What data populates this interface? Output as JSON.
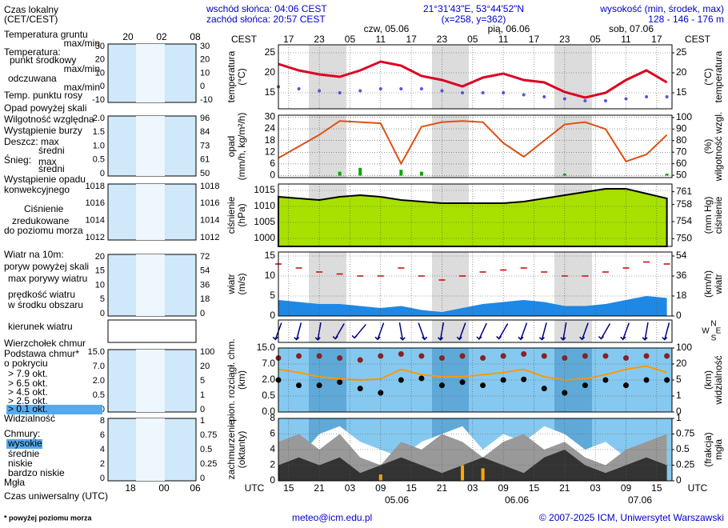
{
  "header": {
    "sunrise": "wschód słońca: 04:06 CEST",
    "sunset": "zachód słońca: 20:57 CEST",
    "coords": "21°31'43\"E, 53°44'52\"N",
    "gridpoint": "(x=258, y=362)",
    "elevation_title": "wysokość (min, środek, max)",
    "elevation": "128 - 146 - 176 m"
  },
  "footer": {
    "email": "meteo@icm.edu.pl",
    "copyright": "© 2007-2025 ICM, Uniwersytet Warszawski",
    "note": "* powyżej poziomu morza"
  },
  "time": {
    "top_label": "CEST",
    "bottom_label": "UTC",
    "xlim": [
      -2,
      75
    ],
    "x": [
      -2,
      2,
      6,
      10,
      14,
      18,
      22,
      26,
      30,
      34,
      38,
      42,
      46,
      50,
      54,
      58,
      62,
      66,
      70,
      74
    ],
    "xticks": [
      {
        "value": 0,
        "label": "15"
      },
      {
        "value": 6,
        "label": "21"
      },
      {
        "value": 12,
        "label": "03"
      },
      {
        "value": 18,
        "label": "09"
      },
      {
        "value": 24,
        "label": "15"
      },
      {
        "value": 30,
        "label": "21"
      },
      {
        "value": 36,
        "label": "03"
      },
      {
        "value": 42,
        "label": "09"
      },
      {
        "value": 48,
        "label": "15"
      },
      {
        "value": 54,
        "label": "21"
      },
      {
        "value": 60,
        "label": "03"
      },
      {
        "value": 66,
        "label": "09"
      },
      {
        "value": 72,
        "label": "15"
      }
    ],
    "x2ticks": [
      {
        "value": 0,
        "label": "17"
      },
      {
        "value": 6,
        "label": "23"
      },
      {
        "value": 12,
        "label": "05"
      },
      {
        "value": 18,
        "label": "11"
      },
      {
        "value": 24,
        "label": "17"
      },
      {
        "value": 30,
        "label": "23"
      },
      {
        "value": 36,
        "label": "05"
      },
      {
        "value": 42,
        "label": "11"
      },
      {
        "value": 48,
        "label": "17"
      },
      {
        "value": 54,
        "label": "23"
      },
      {
        "value": 60,
        "label": "05"
      },
      {
        "value": 66,
        "label": "11"
      },
      {
        "value": 72,
        "label": "17"
      }
    ],
    "days_top": [
      "czw, 05.06",
      "pią, 06.06",
      "sob, 07.06"
    ],
    "days_bottom": [
      "05.06",
      "06.06",
      "07.06"
    ]
  },
  "legend": {
    "texts": [
      "Czas lokalny",
      "(CET/CEST)",
      "Temperatura gruntu",
      "max/min",
      "Temperatura:",
      "max/min",
      "odczuwana",
      "max/min",
      "Opad powyżej skali",
      "Wystąpienie burzy",
      "średni",
      "Śnieg:",
      "max",
      "średni",
      "Wystąpienie opadu",
      "konwekcyjnego",
      "zredukowane",
      "do poziomu morza",
      "Wiatr na 10m:",
      "poryw powyżej skali",
      "w środku obszaru",
      "Podstawa chmur*",
      "o pokryciu",
      "> 6.5 okt.",
      "> 4.5 okt.",
      "> 2.5 okt.",
      "> 0.1 okt.",
      "Chmury:",
      "bardzo niskie",
      "Czas uniwersalny (UTC)"
    ],
    "mini_top": [
      "20",
      "02",
      "08"
    ],
    "mini_bottom": [
      "18",
      "00",
      "06"
    ],
    "mini": [
      {
        "left": [
          30,
          20,
          10,
          0,
          -10
        ],
        "right": [
          30,
          20,
          10,
          0,
          -10
        ]
      },
      {
        "left": [
          "2.0",
          "1.5",
          "1.0",
          0.5,
          0
        ],
        "right": [
          96,
          84,
          73,
          61,
          50
        ]
      },
      {
        "left": [
          1018,
          1016,
          1014,
          1012
        ],
        "right": [
          1018,
          1016,
          1014,
          1012
        ]
      },
      {
        "left": [
          20,
          15,
          10,
          5,
          0
        ],
        "right": [
          72,
          54,
          36,
          18,
          0
        ]
      },
      {
        "left": [
          "15.0",
          "7.0",
          "2.0",
          0.5,
          "0.0"
        ],
        "right": [
          100,
          20,
          5,
          1,
          0
        ]
      },
      {
        "left": [
          8,
          6,
          4,
          2,
          0
        ],
        "right": [
          1,
          0.75,
          0.5,
          0.25,
          0
        ]
      }
    ]
  },
  "chart_data": [
    {
      "type": "line",
      "ylabel": [
        "temperatura",
        "(°C)"
      ],
      "y2label": [
        "(°C)",
        "temperatura"
      ],
      "grid": true,
      "ylim": [
        11,
        27
      ],
      "yticks": [
        15,
        20,
        25
      ],
      "y2lim": [
        11,
        27
      ],
      "y2ticks": [
        15,
        20,
        25
      ],
      "series": [
        {
          "name": "punkt środkowy",
          "mark": "line",
          "color": "#dd0022",
          "values": [
            22.2,
            20.6,
            19.6,
            19,
            20.6,
            22.8,
            21.8,
            19.2,
            18.2,
            16.6,
            18.8,
            19.8,
            18.2,
            17.6,
            15.2,
            13.8,
            15,
            18.2,
            20.6,
            17.6
          ]
        },
        {
          "name": "Temp. punktu rosy",
          "mark": "dots",
          "color": "#5555dd",
          "values": [
            16.5,
            16,
            15.5,
            15,
            15.5,
            16,
            16,
            16,
            15.5,
            15,
            15,
            15,
            14.5,
            14,
            13.5,
            13,
            13,
            13.5,
            14,
            14
          ]
        }
      ]
    },
    {
      "type": "line",
      "ylabel": [
        "opad",
        "(mm/h, kg/m²/h)"
      ],
      "y2label": [
        "(%)",
        "wilgotność wzgl."
      ],
      "grid": true,
      "ylim": [
        -1,
        31
      ],
      "yticks": [
        0,
        6,
        12,
        18,
        24,
        30
      ],
      "y2lim": [
        48,
        102
      ],
      "y2ticks": [
        50,
        60,
        70,
        80,
        90,
        100
      ],
      "series": [
        {
          "name": "Deszcz: max",
          "mark": "bars",
          "color": "#00aa00",
          "values": [
            0,
            0,
            0,
            2,
            4,
            0,
            3,
            2,
            0,
            0,
            0,
            0,
            0,
            0,
            1,
            0,
            0,
            0,
            0,
            1
          ]
        },
        {
          "name": "Wilgotność względna",
          "mark": "line",
          "axis": "y2",
          "color": "#e05010",
          "values": [
            65,
            75,
            85,
            97,
            96,
            95,
            60,
            92,
            96,
            97,
            96,
            78,
            66,
            80,
            94,
            96,
            90,
            62,
            68,
            85
          ]
        }
      ]
    },
    {
      "type": "area",
      "ylabel": [
        "ciśnienie",
        "(hPa)"
      ],
      "y2label": [
        "(mm Hg)",
        "ciśnienie"
      ],
      "grid": true,
      "ylim": [
        997.5,
        1017
      ],
      "yticks": [
        1000,
        1005,
        1010,
        1015
      ],
      "y2lim": [
        748.2,
        762.8
      ],
      "y2ticks": [
        750,
        754,
        758,
        761
      ],
      "series": [
        {
          "name": "Ciśnienie",
          "mark": "area",
          "color": "#a8e000",
          "values": [
            1013,
            1012.5,
            1012,
            1013,
            1013.5,
            1013,
            1012,
            1011.5,
            1011,
            1011,
            1011,
            1011,
            1011.5,
            1012.5,
            1013.5,
            1014.5,
            1015.5,
            1015.5,
            1014,
            1012.5
          ]
        }
      ]
    },
    {
      "type": "area",
      "ylabel": [
        "wiatr",
        "(m/s)"
      ],
      "y2label": [
        "(km/h)",
        "wiatr"
      ],
      "grid": true,
      "ylim": [
        0,
        16
      ],
      "yticks": [
        0,
        5,
        10,
        15
      ],
      "y2lim": [
        0,
        57.6
      ],
      "y2ticks": [
        0,
        18,
        36,
        54
      ],
      "series": [
        {
          "name": "prędkość wiatru",
          "mark": "area",
          "color": "#1e88e5",
          "values": [
            4,
            3.5,
            3,
            3,
            2.5,
            2,
            2.5,
            1.5,
            1,
            2,
            3,
            3.5,
            4,
            3.5,
            2.5,
            2.5,
            3,
            4,
            5,
            4.5
          ]
        },
        {
          "name": "max porywy wiatru",
          "mark": "dash",
          "color": "#cc0000",
          "values": [
            13,
            12,
            11,
            10.5,
            10,
            10,
            12,
            10,
            9,
            10,
            11,
            11.5,
            12,
            11,
            10,
            10,
            11,
            12,
            13.5,
            13
          ]
        }
      ]
    },
    {
      "type": "arrows",
      "compass": [
        "N",
        "W",
        "E",
        "S"
      ],
      "grid": true,
      "series": [
        {
          "name": "kierunek wiatru",
          "mark": "arrows",
          "color": "#000080",
          "values": [
            20,
            15,
            10,
            30,
            40,
            20,
            350,
            340,
            10,
            20,
            25,
            30,
            20,
            15,
            10,
            20,
            30,
            20,
            10,
            15
          ]
        }
      ]
    },
    {
      "type": "scatter",
      "ylabel": [
        "pion. rozciągł. chm.",
        "(km)"
      ],
      "y2label": [
        "(km)",
        "widzialność"
      ],
      "grid": true,
      "yscale": "by_ticks",
      "ylim": [
        0,
        15
      ],
      "yticks": [
        {
          "value": 0,
          "label": "0.0"
        },
        0.5,
        {
          "value": 2,
          "label": "2.0"
        },
        {
          "value": 7,
          "label": "7.0"
        },
        {
          "value": 15,
          "label": "15.0"
        }
      ],
      "y2lim": [
        0,
        100
      ],
      "y2ticks": [
        0,
        1,
        5,
        20,
        100
      ],
      "series": [
        {
          "name": "Wierzchołek chmur",
          "mark": "dots",
          "color": "#882222",
          "values": [
            10,
            11,
            11,
            10,
            9,
            11,
            12,
            11,
            10,
            11,
            10,
            11,
            12,
            11,
            10,
            11,
            11,
            10,
            11,
            11
          ]
        },
        {
          "name": "> 7.9 okt.",
          "mark": "dots",
          "color": "#000000",
          "values": [
            2,
            1.5,
            1.5,
            1.8,
            1.2,
            0.8,
            2,
            2.5,
            1.5,
            1.8,
            1.5,
            2,
            2.2,
            1.2,
            0.8,
            1.5,
            2,
            1.5,
            2,
            2
          ]
        },
        {
          "name": "Widzialność",
          "mark": "line",
          "axis": "y2",
          "color": "#ff9900",
          "values": [
            15,
            12,
            8,
            6,
            5,
            6,
            15,
            10,
            8,
            8,
            10,
            12,
            15,
            8,
            5,
            6,
            10,
            15,
            18,
            12
          ]
        }
      ]
    },
    {
      "type": "area",
      "ylabel": [
        "zachmurzenie",
        "(oktanty)"
      ],
      "y2label": [
        "(frakcja)",
        "mgła"
      ],
      "grid": true,
      "ylim": [
        0,
        8
      ],
      "yticks": [
        0,
        2,
        4,
        6,
        8
      ],
      "y2lim": [
        0,
        1
      ],
      "y2ticks": [
        0,
        0.25,
        0.5,
        0.75,
        1
      ],
      "series": [
        {
          "name": "wysokie",
          "mark": "area",
          "color": "#ffffff",
          "values": [
            4,
            3,
            6,
            7,
            5,
            4,
            3,
            5,
            6,
            7,
            4,
            6,
            5,
            7,
            6,
            4,
            5,
            3,
            4,
            6
          ]
        },
        {
          "name": "średnie",
          "mark": "area",
          "color": "#999999",
          "values": [
            5,
            6,
            4,
            6,
            3,
            2,
            5,
            4,
            6,
            5,
            3,
            5,
            6,
            4,
            5,
            3,
            2,
            4,
            5,
            6
          ]
        },
        {
          "name": "niskie",
          "mark": "area",
          "color": "#333333",
          "values": [
            2,
            3,
            2,
            3,
            1,
            2,
            3,
            2,
            1,
            2,
            3,
            2,
            1,
            3,
            4,
            2,
            1,
            2,
            3,
            2
          ]
        },
        {
          "name": "Mgła",
          "mark": "bars",
          "axis": "y2",
          "color": "#ffaa00",
          "values": [
            0,
            0,
            0,
            0,
            0,
            0.1,
            0,
            0,
            0,
            0.25,
            0.2,
            0,
            0,
            0,
            0,
            0,
            0,
            0,
            0,
            0
          ]
        }
      ]
    }
  ]
}
